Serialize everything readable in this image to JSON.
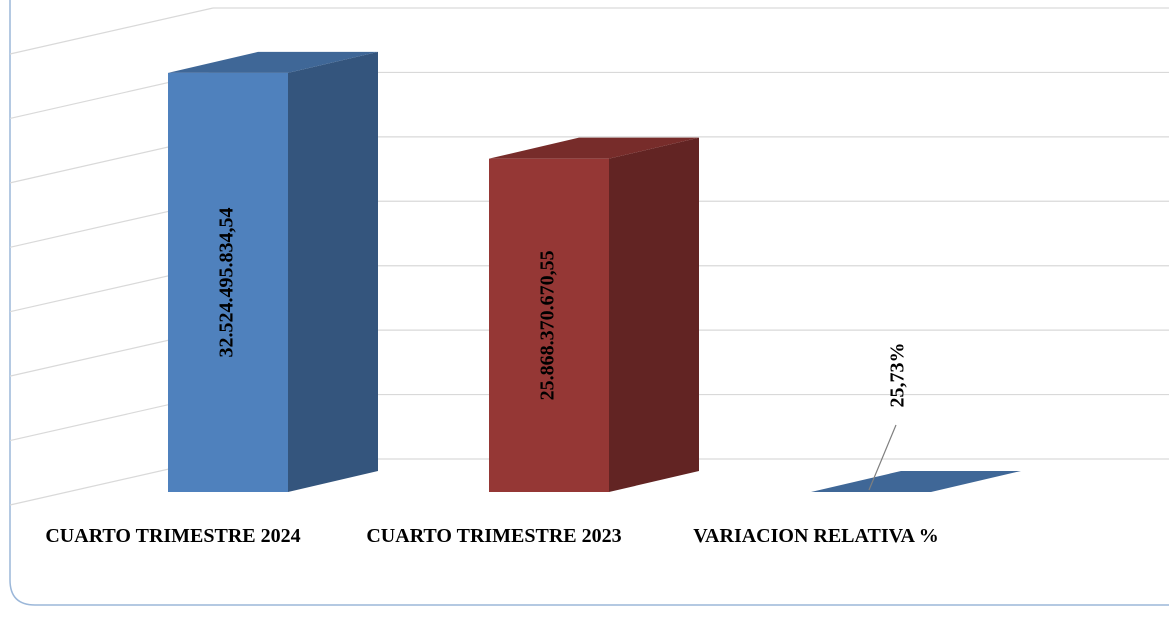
{
  "chart_data": {
    "type": "bar3d",
    "categories": [
      "CUARTO TRIMESTRE 2024",
      "CUARTO TRIMESTRE 2023",
      "VARIACION RELATIVA %"
    ],
    "values": [
      32524495834.54,
      25868370670.55,
      25.73
    ],
    "value_labels": [
      "32.524.495.834,54",
      "25.868.370.670,55",
      "25,73%"
    ],
    "colors": [
      "#4f81bd",
      "#953735",
      "#4f81bd"
    ],
    "ylim": [
      0,
      35000000000
    ],
    "yticks": [
      0,
      5000000000,
      10000000000,
      15000000000,
      20000000000,
      25000000000,
      30000000000,
      35000000000
    ],
    "grid": true
  }
}
